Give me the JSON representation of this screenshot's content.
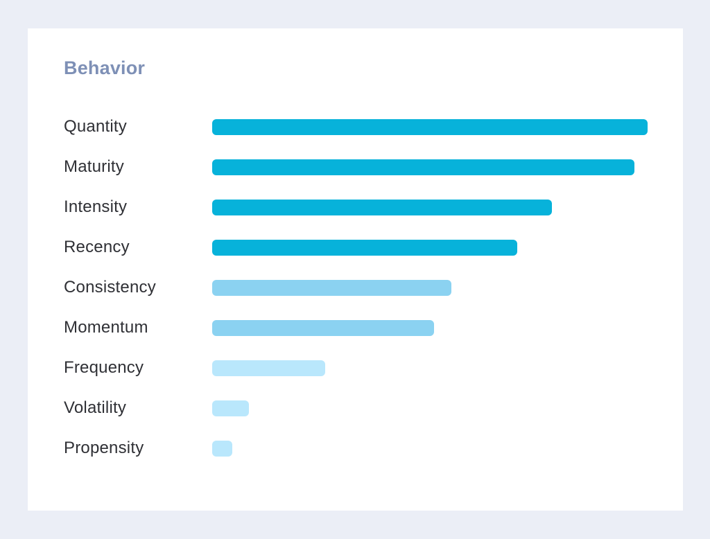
{
  "card": {
    "title": "Behavior",
    "title_color": "#7e90b6",
    "background": "#ffffff",
    "page_background": "#ebeef6"
  },
  "chart_data": {
    "type": "bar",
    "orientation": "horizontal",
    "title": "Behavior",
    "xlabel": "",
    "ylabel": "",
    "xlim": [
      0,
      100
    ],
    "grid": false,
    "legend": false,
    "axis_ticks_visible": false,
    "categories": [
      "Quantity",
      "Maturity",
      "Intensity",
      "Recency",
      "Consistency",
      "Momentum",
      "Frequency",
      "Volatility",
      "Propensity"
    ],
    "values": [
      100,
      97,
      78,
      70,
      55,
      51,
      26,
      8.5,
      4.6
    ],
    "max_value": 100,
    "bar_colors": [
      "#07b2da",
      "#07b2da",
      "#07b2da",
      "#07b2da",
      "#8bd2f1",
      "#8bd2f1",
      "#b9e7fc",
      "#b9e7fc",
      "#b9e7fc"
    ],
    "color_legend_semantics": {
      "#07b2da": "high",
      "#8bd2f1": "medium",
      "#b9e7fc": "low"
    }
  }
}
